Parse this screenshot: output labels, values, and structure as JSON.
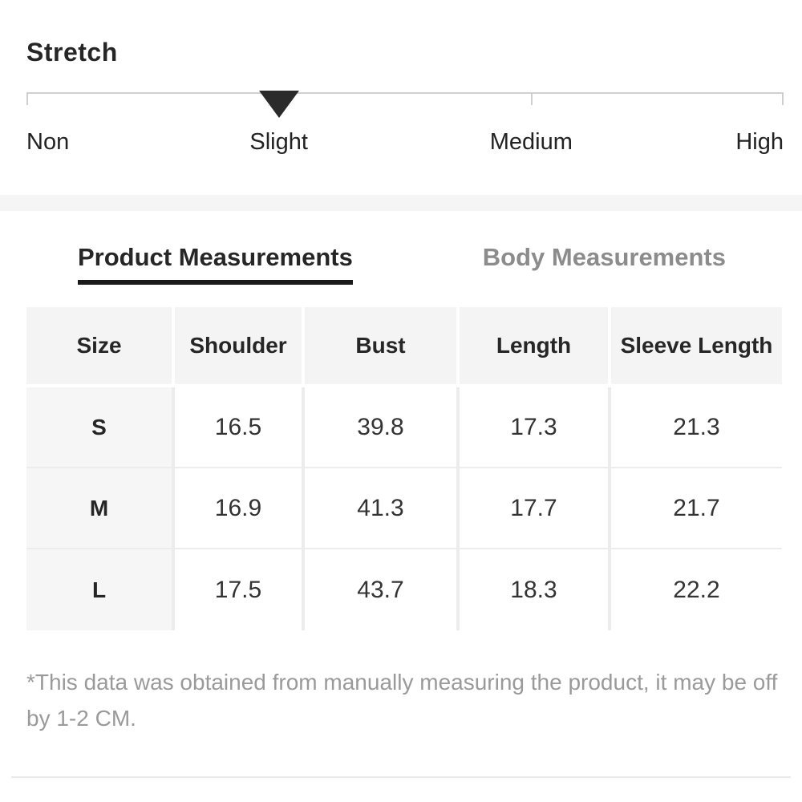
{
  "stretch": {
    "title": "Stretch",
    "levels": [
      "Non",
      "Slight",
      "Medium",
      "High"
    ],
    "selected": "Slight",
    "selected_index": 1
  },
  "tabs": [
    {
      "label": "Product Measurements",
      "active": true
    },
    {
      "label": "Body Measurements",
      "active": false
    }
  ],
  "chart_data": {
    "type": "table",
    "title": "Product Measurements",
    "columns": [
      "Size",
      "Shoulder",
      "Bust",
      "Length",
      "Sleeve Length"
    ],
    "rows": [
      [
        "S",
        "16.5",
        "39.8",
        "17.3",
        "21.3"
      ],
      [
        "M",
        "16.9",
        "41.3",
        "17.7",
        "21.7"
      ],
      [
        "L",
        "17.5",
        "43.7",
        "18.3",
        "22.2"
      ]
    ]
  },
  "footnote": "*This data was obtained from manually measuring the product, it may be off by 1-2 CM.",
  "colors": {
    "accent_dark": "#1a1a1a",
    "text_primary": "#262626",
    "text_inactive": "#8c8c8c",
    "text_footnote": "#9a9a9a",
    "header_bg": "#f4f4f4",
    "grid_line": "#ececec",
    "scale_line": "#cfcfcf",
    "band_bg": "#f5f5f6"
  }
}
